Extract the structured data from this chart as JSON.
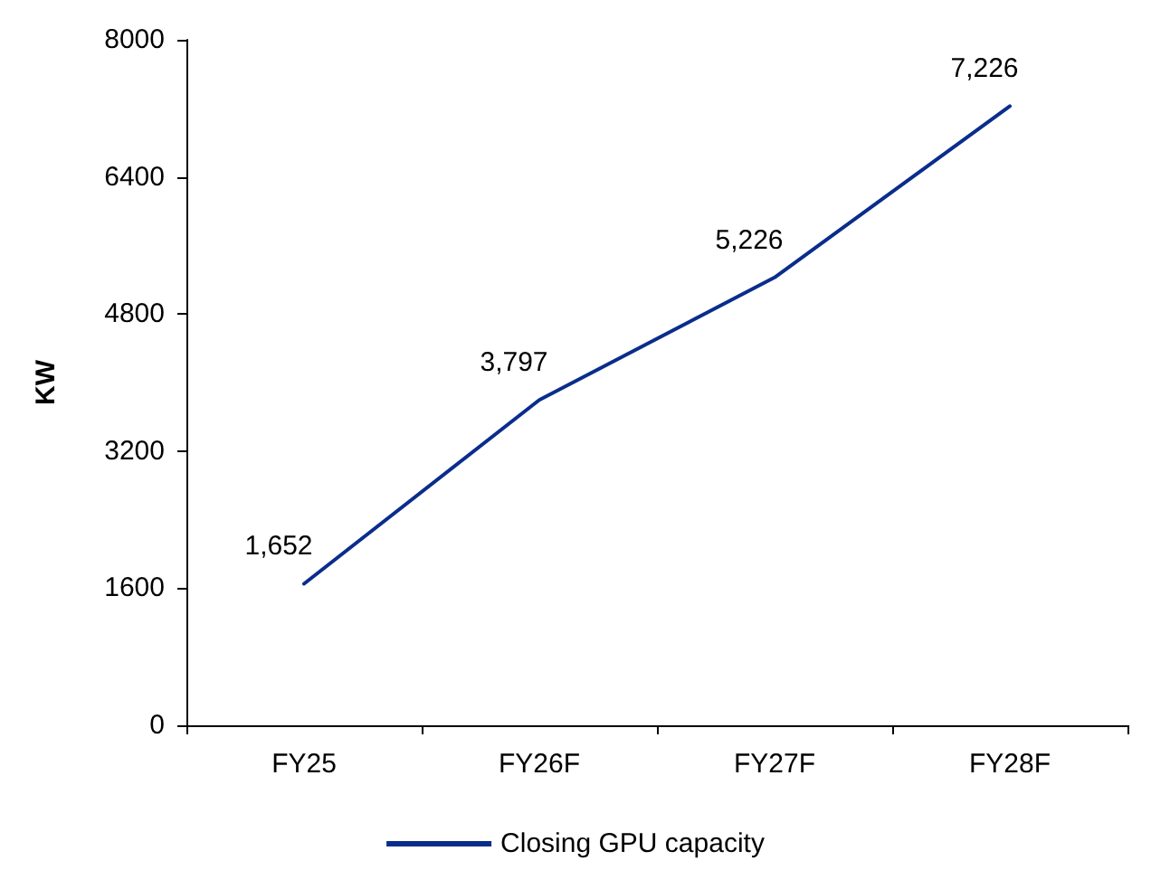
{
  "chart_data": {
    "type": "line",
    "ylabel": "KW",
    "categories": [
      "FY25",
      "FY26F",
      "FY27F",
      "FY28F"
    ],
    "series": [
      {
        "name": "Closing GPU capacity",
        "color": "#0a2d8c",
        "values": [
          1652,
          3797,
          5226,
          7226
        ],
        "value_labels": [
          "1,652",
          "3,797",
          "5,226",
          "7,226"
        ]
      }
    ],
    "ylim": [
      0,
      8000
    ],
    "yticks": [
      0,
      1600,
      3200,
      4800,
      6400,
      8000
    ],
    "legend": "bottom",
    "marker": "none",
    "line_style": "solid"
  }
}
